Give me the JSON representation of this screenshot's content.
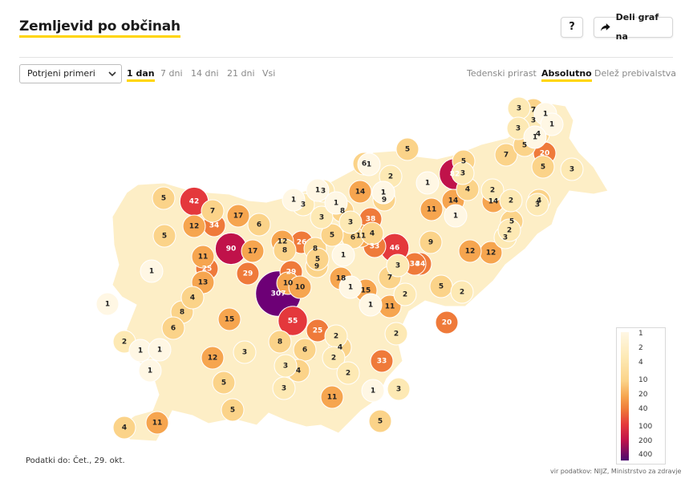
{
  "header": {
    "title": "Zemljevid po občinah",
    "help_label": "?",
    "share_label": "Deli graf na"
  },
  "controls": {
    "select_value": "Potrjeni primeri",
    "range_tabs": [
      "1 dan",
      "7 dni",
      "14 dni",
      "21 dni",
      "Vsi"
    ],
    "active_range": "1 dan",
    "mode_tabs": [
      "Tedenski prirast",
      "Absolutno",
      "Delež prebivalstva"
    ],
    "active_mode": "Absolutno"
  },
  "footer": {
    "date_text": "Podatki do: Čet., 29. okt.",
    "source_text": "vir podatkov: NIJZ, Ministrstvo za zdravje"
  },
  "colors": {
    "accent": "#ffd500",
    "scale": [
      "#fff7e4",
      "#fde9b4",
      "#fbd389",
      "#f6a54f",
      "#ef7a3a",
      "#e4383c",
      "#c0124a",
      "#6d0076"
    ]
  },
  "chart_data": {
    "type": "choropleth",
    "title": "Zemljevid po občinah",
    "legend": {
      "ticks": [
        "1",
        "2",
        "4",
        "10",
        "20",
        "40",
        "100",
        "200",
        "400"
      ],
      "placement": "bottom-right"
    },
    "values": [
      307,
      90,
      82,
      55,
      46,
      42,
      38,
      34,
      34,
      34,
      33,
      33,
      29,
      29,
      26,
      25,
      25,
      20,
      20,
      18,
      17,
      17,
      15,
      15,
      14,
      14,
      14,
      13,
      12,
      12,
      12,
      12,
      12,
      11,
      11,
      11,
      11,
      11,
      11,
      10,
      10,
      9,
      9,
      9,
      8,
      8,
      8,
      8,
      8,
      7,
      7,
      7,
      7,
      6,
      6,
      6,
      6,
      6,
      5,
      5,
      5,
      5,
      5,
      5,
      5,
      5,
      5,
      5,
      5,
      5,
      5,
      4,
      4,
      4,
      4,
      4,
      4,
      4,
      4,
      3,
      3,
      3,
      3,
      3,
      3,
      3,
      3,
      3,
      3,
      3,
      3,
      3,
      3,
      3,
      3,
      2,
      2,
      2,
      2,
      2,
      2,
      2,
      2,
      2,
      2,
      2,
      1,
      1,
      1,
      1,
      1,
      1,
      1,
      1,
      1,
      1,
      1,
      1,
      1,
      1,
      1,
      1,
      1,
      1,
      1,
      1
    ]
  }
}
